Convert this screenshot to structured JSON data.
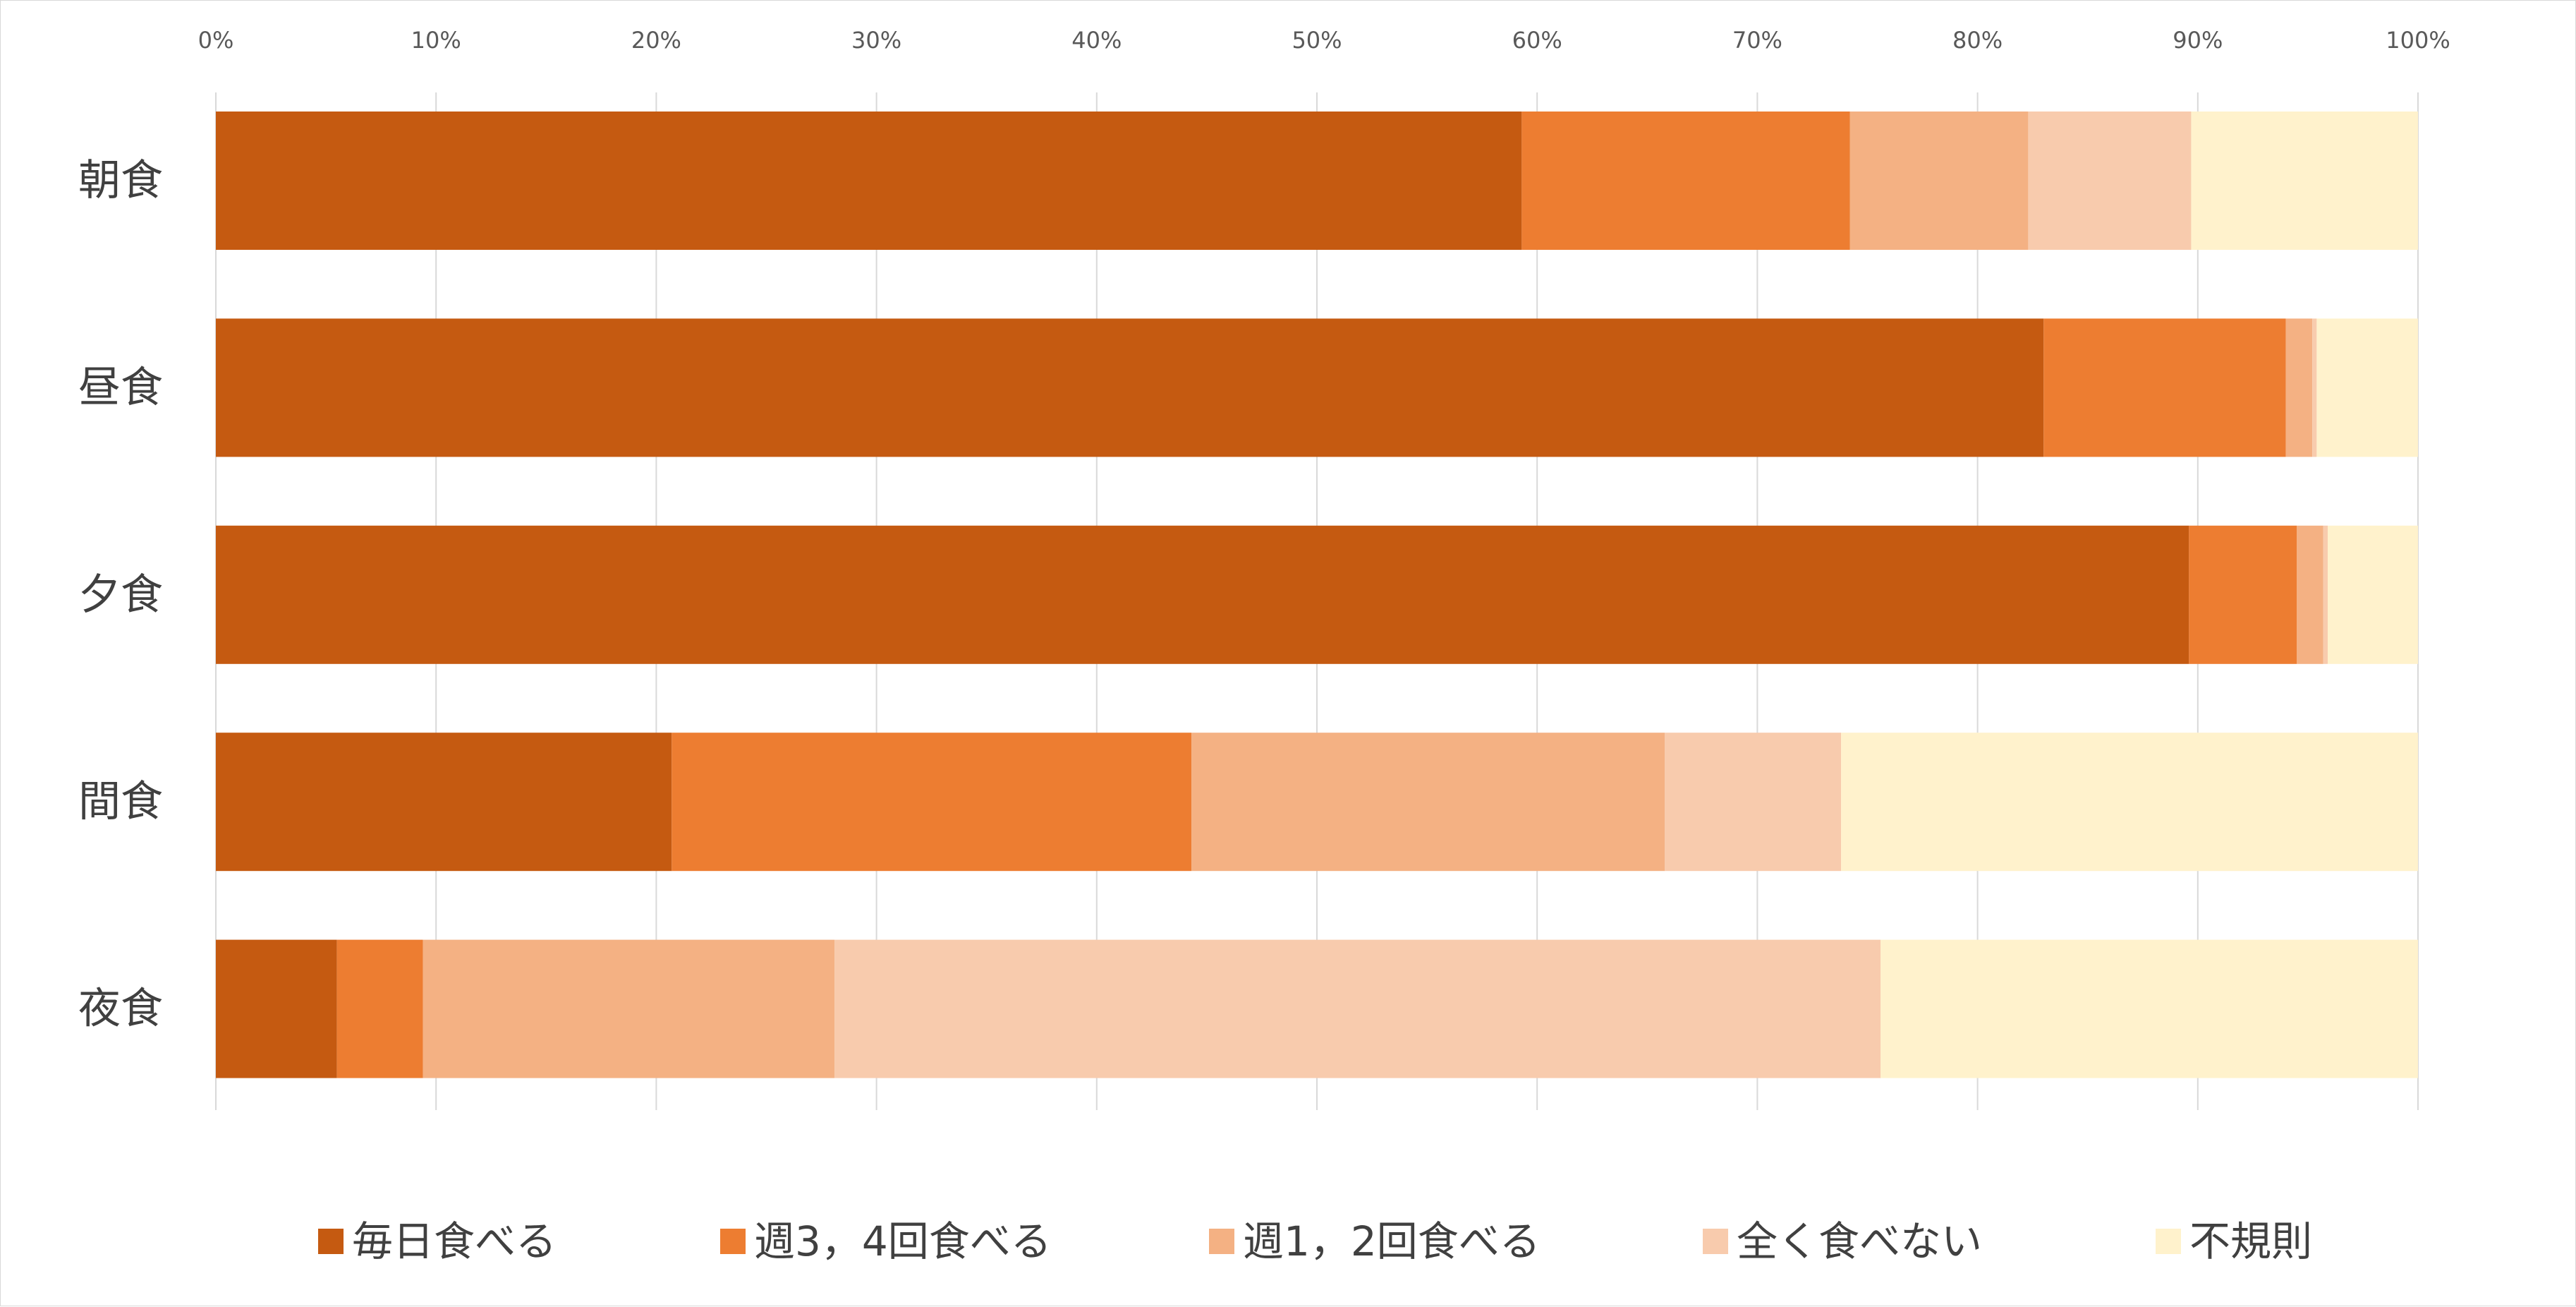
{
  "chart_data": {
    "type": "bar",
    "orientation": "horizontal",
    "stacked": "percent",
    "title": "",
    "xlabel": "",
    "ylabel": "",
    "xlim": [
      0,
      100
    ],
    "x_ticks": [
      "0%",
      "10%",
      "20%",
      "30%",
      "40%",
      "50%",
      "60%",
      "70%",
      "80%",
      "90%",
      "100%"
    ],
    "x_axis_position": "top",
    "grid": "vertical",
    "legend_position": "bottom",
    "categories": [
      "朝食",
      "昼食",
      "夕食",
      "間食",
      "夜食"
    ],
    "series": [
      {
        "name": "毎日食べる",
        "color": "#C55A11",
        "values": [
          59.3,
          83.0,
          89.6,
          20.7,
          5.5
        ]
      },
      {
        "name": "週3，4回食べる",
        "color": "#ED7D31",
        "values": [
          14.9,
          11.0,
          4.9,
          23.6,
          3.9
        ]
      },
      {
        "name": "週1，2回食べる",
        "color": "#F4B183",
        "values": [
          8.1,
          1.2,
          1.2,
          21.5,
          18.7
        ]
      },
      {
        "name": "全く食べない",
        "color": "#F8CBAD",
        "values": [
          7.4,
          0.2,
          0.2,
          8.0,
          47.5
        ]
      },
      {
        "name": "不規則",
        "color": "#FFF2CC",
        "values": [
          10.3,
          4.6,
          4.1,
          26.2,
          24.4
        ]
      }
    ]
  }
}
